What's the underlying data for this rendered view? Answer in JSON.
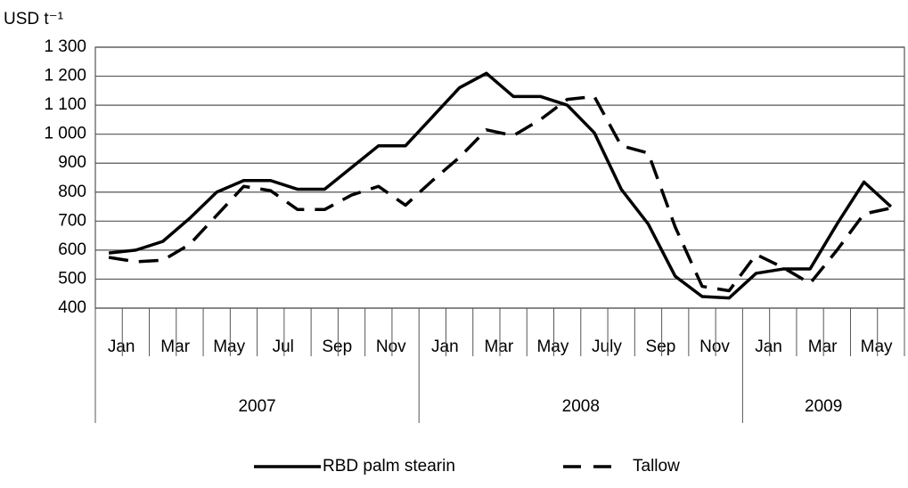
{
  "chart_data": {
    "type": "line",
    "y_label": "USD t⁻¹",
    "categories": [
      "Jan",
      null,
      "Mar",
      null,
      "May",
      null,
      "Jul",
      null,
      "Sep",
      null,
      "Nov",
      null,
      "Jan",
      null,
      "Mar",
      null,
      "May",
      null,
      "July",
      null,
      "Sep",
      null,
      "Nov",
      null,
      "Jan",
      null,
      "Mar",
      null,
      "May",
      null
    ],
    "years": [
      "2007",
      "2008",
      "2009"
    ],
    "series": [
      {
        "name": "RBD palm stearin",
        "color": "#000000",
        "dash": false,
        "values": [
          590,
          600,
          630,
          710,
          800,
          840,
          840,
          810,
          810,
          885,
          960,
          960,
          1060,
          1160,
          1210,
          1130,
          1130,
          1100,
          1005,
          810,
          690,
          510,
          440,
          435,
          520,
          535,
          535,
          690,
          835,
          750
        ]
      },
      {
        "name": "Tallow",
        "color": "#000000",
        "dash": true,
        "values": [
          575,
          560,
          565,
          620,
          720,
          820,
          805,
          740,
          740,
          790,
          820,
          755,
          840,
          920,
          1015,
          995,
          1050,
          1120,
          1130,
          960,
          935,
          680,
          475,
          460,
          585,
          540,
          485,
          600,
          725,
          745
        ]
      }
    ],
    "ylim": [
      400,
      1300
    ],
    "yticks": [
      {
        "value": 400,
        "label": "400"
      },
      {
        "value": 500,
        "label": "500"
      },
      {
        "value": 600,
        "label": "600"
      },
      {
        "value": 700,
        "label": "700"
      },
      {
        "value": 800,
        "label": "800"
      },
      {
        "value": 900,
        "label": "900"
      },
      {
        "value": 1000,
        "label": "1 000"
      },
      {
        "value": 1100,
        "label": "1 100"
      },
      {
        "value": 1200,
        "label": "1 200"
      },
      {
        "value": 1300,
        "label": "1 300"
      }
    ],
    "grid": true
  }
}
